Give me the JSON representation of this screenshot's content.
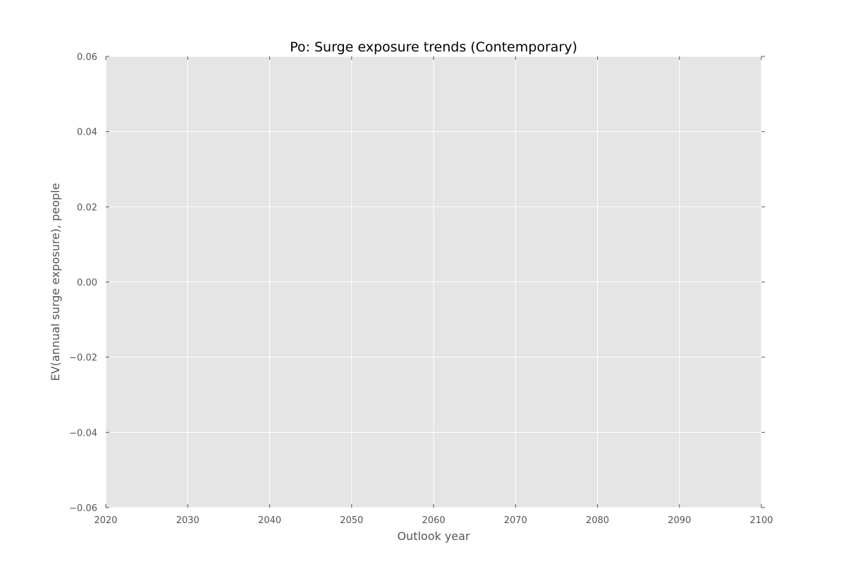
{
  "chart_data": {
    "type": "line",
    "title": "Po: Surge exposure trends (Contemporary)",
    "xlabel": "Outlook year",
    "ylabel": "EV(annual surge exposure), people",
    "xlim": [
      2020,
      2100
    ],
    "ylim": [
      -0.06,
      0.06
    ],
    "x_ticks": [
      2020,
      2030,
      2040,
      2050,
      2060,
      2070,
      2080,
      2090,
      2100
    ],
    "x_tick_labels": [
      "2020",
      "2030",
      "2040",
      "2050",
      "2060",
      "2070",
      "2080",
      "2090",
      "2100"
    ],
    "y_ticks": [
      0.06,
      0.04,
      0.02,
      0.0,
      -0.02,
      -0.04,
      -0.06
    ],
    "y_tick_labels": [
      "0.06",
      "0.04",
      "0.02",
      "0.00",
      "−0.02",
      "−0.04",
      "−0.06"
    ],
    "grid": true,
    "series": [],
    "colors": {
      "plot_background": "#e5e5e5",
      "grid": "#ffffff",
      "tick_text": "#555555",
      "title_text": "#000000"
    }
  }
}
